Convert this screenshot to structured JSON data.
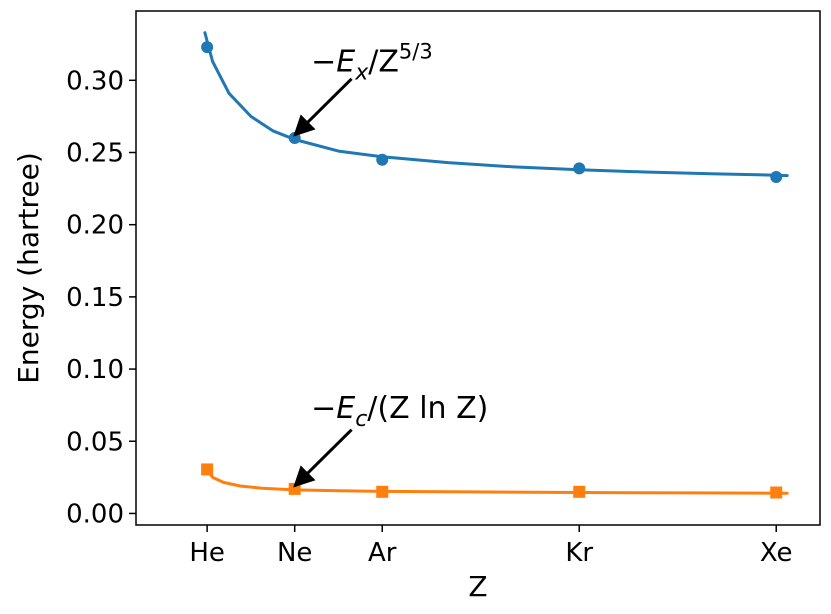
{
  "chart_data": {
    "type": "line",
    "xlabel": "Z",
    "ylabel": "Energy (hartree)",
    "xlim": [
      -4.5,
      58
    ],
    "ylim": [
      -0.008,
      0.348
    ],
    "x_tick_values": [
      2,
      10,
      18,
      36,
      54
    ],
    "x_tick_labels": [
      "He",
      "Ne",
      "Ar",
      "Kr",
      "Xe"
    ],
    "y_ticks": [
      "0.00",
      "0.05",
      "0.10",
      "0.15",
      "0.20",
      "0.25",
      "0.30"
    ],
    "y_tick_values": [
      0.0,
      0.05,
      0.1,
      0.15,
      0.2,
      0.25,
      0.3
    ],
    "grid": false,
    "series": [
      {
        "color": "#1f77b4",
        "marker": "circle",
        "points": {
          "x": [
            2,
            10,
            18,
            36,
            54
          ],
          "y": [
            0.323,
            0.26,
            0.245,
            0.239,
            0.233
          ]
        },
        "fit_curve": {
          "x": [
            1.8,
            2.5,
            4,
            6,
            8,
            10,
            14,
            18,
            24,
            30,
            36,
            42,
            48,
            54,
            55
          ],
          "y": [
            0.333,
            0.313,
            0.291,
            0.275,
            0.265,
            0.259,
            0.251,
            0.247,
            0.243,
            0.24,
            0.238,
            0.2365,
            0.2353,
            0.2343,
            0.234
          ]
        }
      },
      {
        "color": "#ff7f0e",
        "marker": "square",
        "points": {
          "x": [
            2,
            10,
            18,
            36,
            54
          ],
          "y": [
            0.0305,
            0.017,
            0.015,
            0.015,
            0.0145
          ]
        },
        "fit_curve": {
          "x": [
            2,
            2.5,
            3.5,
            5,
            7,
            10,
            14,
            18,
            26,
            36,
            46,
            54,
            55
          ],
          "y": [
            0.03,
            0.025,
            0.0215,
            0.019,
            0.0175,
            0.0163,
            0.0157,
            0.0153,
            0.0149,
            0.0145,
            0.0142,
            0.014,
            0.014
          ]
        }
      }
    ],
    "annotations": [
      {
        "prefix": "−E",
        "sub": "x",
        "mid": "/Z",
        "sup": "5/3",
        "suffix": "",
        "text_pos": [
          11.5,
          0.306
        ],
        "arrow_from": [
          15.2,
          0.301
        ],
        "arrow_to": [
          10.0,
          0.262
        ]
      },
      {
        "prefix": "−E",
        "sub": "c",
        "mid": "/(Z ln Z)",
        "sup": "",
        "suffix": "",
        "text_pos": [
          11.5,
          0.066
        ],
        "arrow_from": [
          15.2,
          0.058
        ],
        "arrow_to": [
          10.0,
          0.019
        ]
      }
    ]
  }
}
